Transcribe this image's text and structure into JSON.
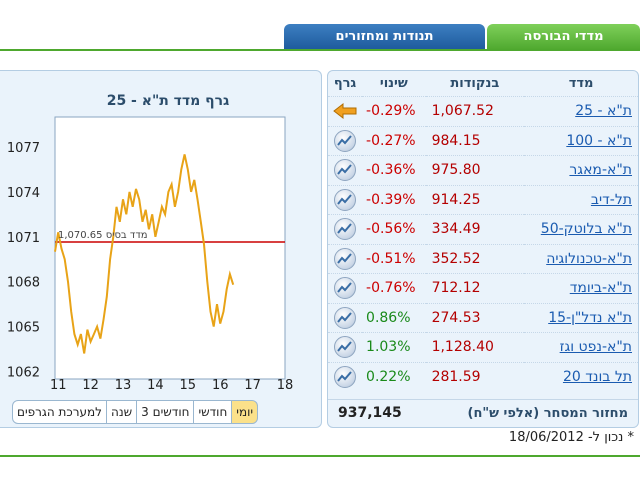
{
  "tabs": {
    "indices_label": "מדדי הבורסה",
    "movers_label": "תנודות ומחזורים"
  },
  "chart": {
    "title": "גרף מדד ת\"א - 25",
    "base_label": "מדד בסיס",
    "base_value_label": "1,070.65"
  },
  "chart_data": {
    "type": "line",
    "title": "גרף מדד ת\"א - 25",
    "xlabel": "",
    "ylabel": "",
    "x_ticks": [
      "11",
      "12",
      "13",
      "14",
      "15",
      "16",
      "17",
      "18"
    ],
    "y_ticks": [
      "1077",
      "1074",
      "1071",
      "1068",
      "1065",
      "1062"
    ],
    "xlim": [
      10.9,
      18.0
    ],
    "ylim": [
      1061.5,
      1079.0
    ],
    "base_value": 1070.65,
    "colors": {
      "line": "#e8a317",
      "base_line": "#cc0000"
    },
    "grid": false,
    "series": [
      {
        "x": [
          10.9,
          11.0,
          11.1,
          11.2,
          11.3,
          11.4,
          11.5,
          11.6,
          11.7,
          11.8,
          11.9,
          12.0,
          12.1,
          12.2,
          12.3,
          12.4,
          12.5,
          12.6,
          12.7,
          12.8,
          12.9,
          13.0,
          13.1,
          13.2,
          13.3,
          13.4,
          13.5,
          13.6,
          13.7,
          13.8,
          13.9,
          14.0,
          14.1,
          14.2,
          14.3,
          14.4,
          14.5,
          14.6,
          14.7,
          14.8,
          14.9,
          15.0,
          15.1,
          15.2,
          15.3,
          15.4,
          15.5,
          15.6,
          15.7,
          15.8,
          15.9,
          16.0,
          16.1,
          16.2,
          16.3,
          16.4
        ],
        "y": [
          1070.0,
          1071.3,
          1070.2,
          1069.5,
          1068.0,
          1066.0,
          1064.5,
          1063.8,
          1064.5,
          1063.2,
          1064.8,
          1064.0,
          1064.5,
          1065.0,
          1064.2,
          1065.5,
          1067.0,
          1069.5,
          1071.0,
          1073.0,
          1072.0,
          1073.5,
          1072.5,
          1074.0,
          1073.0,
          1074.2,
          1073.5,
          1072.0,
          1072.8,
          1071.5,
          1072.5,
          1071.0,
          1072.0,
          1073.0,
          1072.5,
          1074.0,
          1074.5,
          1073.0,
          1074.0,
          1075.5,
          1076.5,
          1075.5,
          1074.0,
          1074.8,
          1073.5,
          1072.0,
          1070.5,
          1068.0,
          1066.0,
          1065.0,
          1066.5,
          1065.2,
          1066.0,
          1067.5,
          1068.5,
          1067.8
        ]
      }
    ]
  },
  "range_buttons": [
    "יומי",
    "חודשי",
    "3 חודשים",
    "שנה",
    "למערכת הגרפים"
  ],
  "table": {
    "headers": {
      "index": "מדד",
      "points": "בנקודות",
      "change": "שינוי",
      "graph": "גרף"
    },
    "rows": [
      {
        "name": "ת\"א - 25",
        "points": "1,067.52",
        "change": "-0.29%",
        "trend": "neg",
        "icon": "arrow-left-icon"
      },
      {
        "name": "ת\"א - 100",
        "points": "984.15",
        "change": "-0.27%",
        "trend": "neg",
        "icon": "chart-icon"
      },
      {
        "name": "ת\"א-מאגר",
        "points": "975.80",
        "change": "-0.36%",
        "trend": "neg",
        "icon": "chart-icon"
      },
      {
        "name": "תל-דיב",
        "points": "914.25",
        "change": "-0.39%",
        "trend": "neg",
        "icon": "chart-icon"
      },
      {
        "name": "ת\"א בלוטק-50",
        "points": "334.49",
        "change": "-0.56%",
        "trend": "neg",
        "icon": "chart-icon"
      },
      {
        "name": "ת\"א-טכנולוגיה",
        "points": "352.52",
        "change": "-0.51%",
        "trend": "neg",
        "icon": "chart-icon"
      },
      {
        "name": "ת\"א-ביומד",
        "points": "712.12",
        "change": "-0.76%",
        "trend": "neg",
        "icon": "chart-icon"
      },
      {
        "name": "ת\"א נדל\"ן-15",
        "points": "274.53",
        "change": "0.86%",
        "trend": "pos",
        "icon": "chart-icon"
      },
      {
        "name": "ת\"א-נפט וגז",
        "points": "1,128.40",
        "change": "1.03%",
        "trend": "pos",
        "icon": "chart-icon"
      },
      {
        "name": "תל בונד 20",
        "points": "281.59",
        "change": "0.22%",
        "trend": "pos",
        "icon": "chart-icon"
      }
    ],
    "volume_label": "מחזור המסחר (אלפי ש\"ח)",
    "volume_value": "937,145"
  },
  "footnote": "* נכון ל- 18/06/2012"
}
